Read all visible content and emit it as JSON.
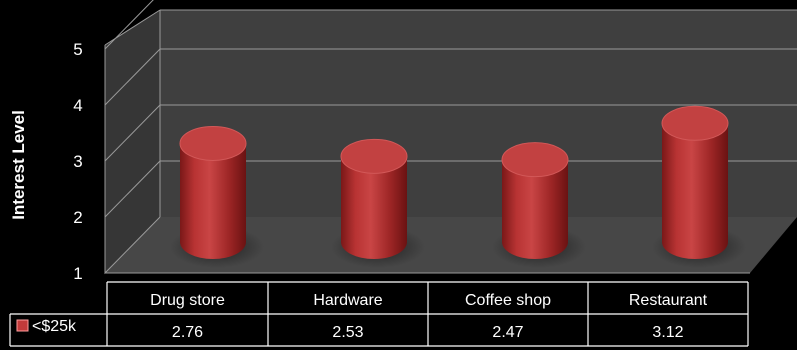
{
  "chart_data": {
    "type": "bar",
    "style": "3d-cylinder",
    "categories": [
      "Drug store",
      "Hardware",
      "Coffee shop",
      "Restaurant"
    ],
    "series": [
      {
        "name": "<$25k",
        "values": [
          2.76,
          2.53,
          2.47,
          3.12
        ],
        "color": "#b32f2f"
      }
    ],
    "ylabel": "Interest Level",
    "xlabel": "",
    "yticks": [
      1,
      2,
      3,
      4,
      5
    ],
    "ylim": [
      1,
      5
    ],
    "grid": true,
    "legend": "data-table-left",
    "data_table": true
  },
  "colors": {
    "background": "#000000",
    "wall": "#3f3f3f",
    "floor": "#454545",
    "gridline": "#9a9a9a",
    "bar": "#b32f2f",
    "bar_top": "#c84848",
    "table_border": "#ffffff"
  }
}
